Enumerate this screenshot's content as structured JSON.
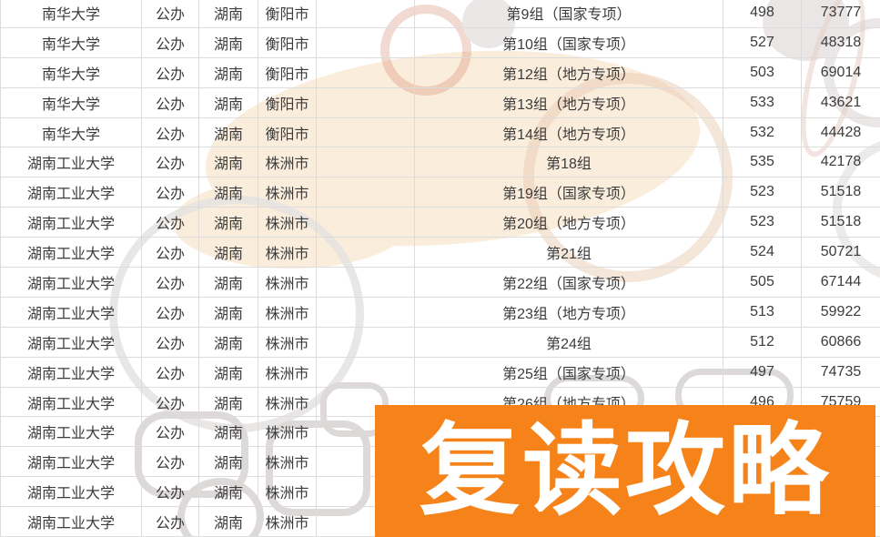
{
  "banner": {
    "label": "复读攻略",
    "background": "#F5831A",
    "text_color": "#FFFFFF"
  },
  "watermark": {
    "peach_color": "#FAEDDC",
    "gray_color": "#E9E6E5"
  },
  "table": {
    "columns": [
      "university",
      "type",
      "province",
      "city",
      "spacer",
      "group",
      "score",
      "rank"
    ],
    "rows": [
      {
        "university": "南华大学",
        "type": "公办",
        "province": "湖南",
        "city": "衡阳市",
        "spacer": "",
        "group": "第9组（国家专项）",
        "score": "498",
        "rank": "73777"
      },
      {
        "university": "南华大学",
        "type": "公办",
        "province": "湖南",
        "city": "衡阳市",
        "spacer": "",
        "group": "第10组（国家专项）",
        "score": "527",
        "rank": "48318"
      },
      {
        "university": "南华大学",
        "type": "公办",
        "province": "湖南",
        "city": "衡阳市",
        "spacer": "",
        "group": "第12组（地方专项）",
        "score": "503",
        "rank": "69014"
      },
      {
        "university": "南华大学",
        "type": "公办",
        "province": "湖南",
        "city": "衡阳市",
        "spacer": "",
        "group": "第13组（地方专项）",
        "score": "533",
        "rank": "43621"
      },
      {
        "university": "南华大学",
        "type": "公办",
        "province": "湖南",
        "city": "衡阳市",
        "spacer": "",
        "group": "第14组（地方专项）",
        "score": "532",
        "rank": "44428"
      },
      {
        "university": "湖南工业大学",
        "type": "公办",
        "province": "湖南",
        "city": "株洲市",
        "spacer": "",
        "group": "第18组",
        "score": "535",
        "rank": "42178"
      },
      {
        "university": "湖南工业大学",
        "type": "公办",
        "province": "湖南",
        "city": "株洲市",
        "spacer": "",
        "group": "第19组（国家专项）",
        "score": "523",
        "rank": "51518"
      },
      {
        "university": "湖南工业大学",
        "type": "公办",
        "province": "湖南",
        "city": "株洲市",
        "spacer": "",
        "group": "第20组（地方专项）",
        "score": "523",
        "rank": "51518"
      },
      {
        "university": "湖南工业大学",
        "type": "公办",
        "province": "湖南",
        "city": "株洲市",
        "spacer": "",
        "group": "第21组",
        "score": "524",
        "rank": "50721"
      },
      {
        "university": "湖南工业大学",
        "type": "公办",
        "province": "湖南",
        "city": "株洲市",
        "spacer": "",
        "group": "第22组（国家专项）",
        "score": "505",
        "rank": "67144"
      },
      {
        "university": "湖南工业大学",
        "type": "公办",
        "province": "湖南",
        "city": "株洲市",
        "spacer": "",
        "group": "第23组（地方专项）",
        "score": "513",
        "rank": "59922"
      },
      {
        "university": "湖南工业大学",
        "type": "公办",
        "province": "湖南",
        "city": "株洲市",
        "spacer": "",
        "group": "第24组",
        "score": "512",
        "rank": "60866"
      },
      {
        "university": "湖南工业大学",
        "type": "公办",
        "province": "湖南",
        "city": "株洲市",
        "spacer": "",
        "group": "第25组（国家专项）",
        "score": "497",
        "rank": "74735"
      },
      {
        "university": "湖南工业大学",
        "type": "公办",
        "province": "湖南",
        "city": "株洲市",
        "spacer": "",
        "group": "第26组（地方专项）",
        "score": "496",
        "rank": "75759"
      },
      {
        "university": "湖南工业大学",
        "type": "公办",
        "province": "湖南",
        "city": "株洲市",
        "spacer": "",
        "group": "",
        "score": "",
        "rank": ""
      },
      {
        "university": "湖南工业大学",
        "type": "公办",
        "province": "湖南",
        "city": "株洲市",
        "spacer": "",
        "group": "",
        "score": "",
        "rank": ""
      },
      {
        "university": "湖南工业大学",
        "type": "公办",
        "province": "湖南",
        "city": "株洲市",
        "spacer": "",
        "group": "",
        "score": "",
        "rank": ""
      },
      {
        "university": "湖南工业大学",
        "type": "公办",
        "province": "湖南",
        "city": "株洲市",
        "spacer": "",
        "group": "",
        "score": "",
        "rank": ""
      }
    ]
  }
}
